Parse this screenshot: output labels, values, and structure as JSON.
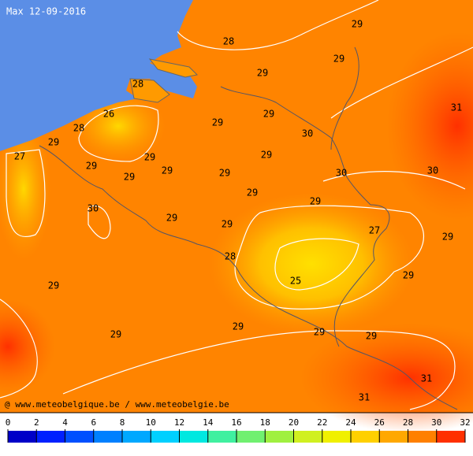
{
  "title": "Max 12-09-2016",
  "credit": "@ www.meteobelgique.be / www.meteobelgie.be",
  "labels": [
    "29",
    "28",
    "29",
    "29",
    "28",
    "31",
    "26",
    "29",
    "29",
    "28",
    "30",
    "29",
    "27",
    "29",
    "29",
    "29",
    "29",
    "29",
    "29",
    "30",
    "30",
    "29",
    "29",
    "30",
    "29",
    "29",
    "27",
    "29",
    "28",
    "29",
    "25",
    "29",
    "29",
    "29",
    "29",
    "29",
    "31",
    "31"
  ],
  "colorbar": {
    "ticks": [
      0,
      2,
      4,
      6,
      8,
      10,
      12,
      14,
      16,
      18,
      20,
      22,
      24,
      26,
      28,
      30,
      32
    ]
  }
}
